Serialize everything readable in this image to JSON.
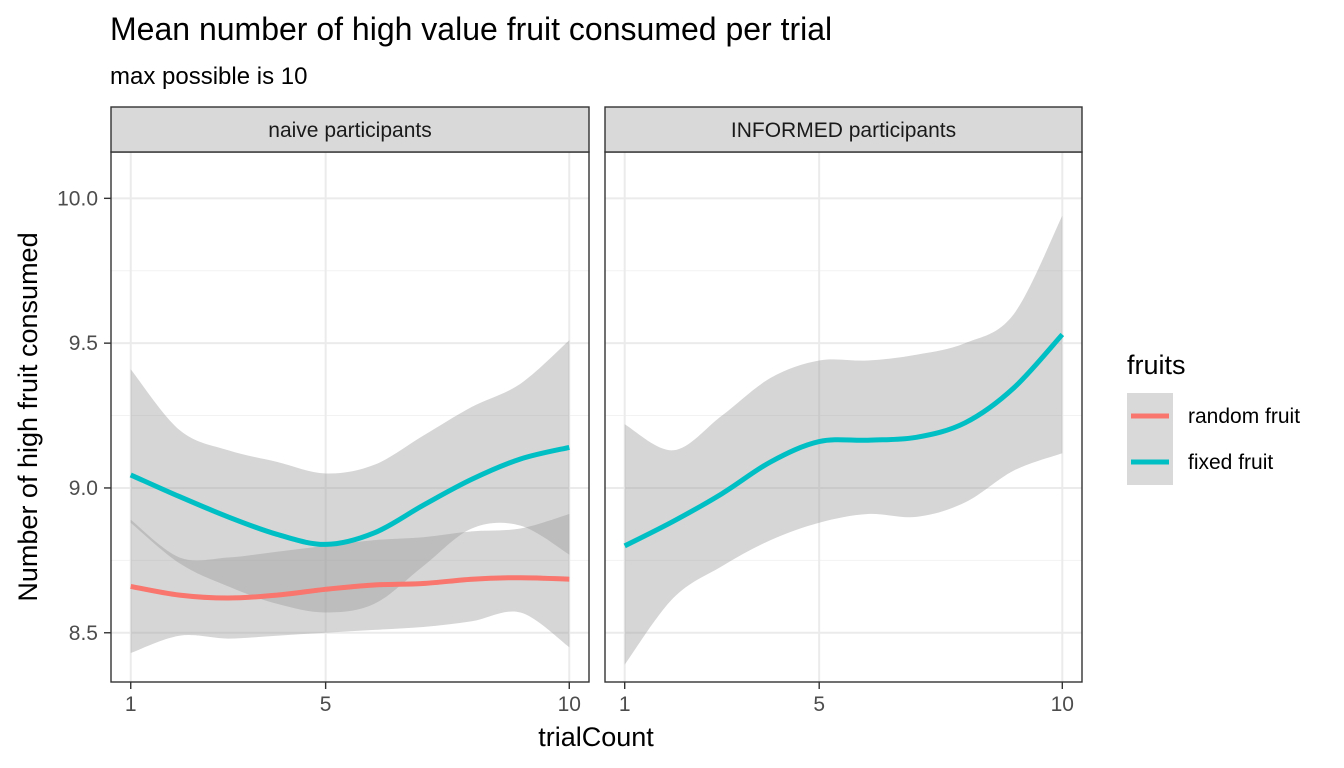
{
  "chart_data": {
    "type": "line",
    "title": "Mean number of high value fruit consumed per trial",
    "subtitle": "max possible is 10",
    "xlabel": "trialCount",
    "ylabel": "Number of high fruit consumed",
    "xlim": [
      1,
      10
    ],
    "ylim": [
      8.33,
      10.16
    ],
    "x_ticks": [
      1,
      5,
      10
    ],
    "x_tick_labels": [
      "1",
      "5",
      "10"
    ],
    "y_ticks": [
      8.5,
      9.0,
      9.5,
      10.0
    ],
    "y_tick_labels": [
      "8.5",
      "9.0",
      "9.5",
      "10.0"
    ],
    "grid": true,
    "legend": {
      "title": "fruits",
      "position": "right",
      "entries": [
        {
          "label": "random fruit",
          "color": "#F8766D"
        },
        {
          "label": "fixed fruit",
          "color": "#00BFC4"
        }
      ]
    },
    "x": [
      1,
      2,
      3,
      4,
      5,
      6,
      7,
      8,
      9,
      10
    ],
    "panels": [
      {
        "label": "naive participants",
        "series": [
          {
            "name": "random fruit",
            "color": "#F8766D",
            "values": [
              8.66,
              8.63,
              8.62,
              8.63,
              8.65,
              8.665,
              8.67,
              8.685,
              8.69,
              8.685
            ],
            "ci_low": [
              8.43,
              8.49,
              8.48,
              8.49,
              8.5,
              8.51,
              8.52,
              8.54,
              8.57,
              8.45
            ],
            "ci_high": [
              8.89,
              8.76,
              8.76,
              8.78,
              8.8,
              8.82,
              8.83,
              8.85,
              8.86,
              8.91
            ]
          },
          {
            "name": "fixed fruit",
            "color": "#00BFC4",
            "values": [
              9.045,
              8.97,
              8.9,
              8.84,
              8.805,
              8.845,
              8.94,
              9.03,
              9.1,
              9.14
            ],
            "ci_low": [
              8.88,
              8.74,
              8.66,
              8.6,
              8.57,
              8.6,
              8.73,
              8.86,
              8.87,
              8.77
            ],
            "ci_high": [
              9.41,
              9.2,
              9.13,
              9.09,
              9.05,
              9.08,
              9.18,
              9.28,
              9.36,
              9.51
            ]
          }
        ]
      },
      {
        "label": "INFORMED participants",
        "series": [
          {
            "name": "fixed fruit",
            "color": "#00BFC4",
            "values": [
              8.8,
              8.885,
              8.98,
              9.09,
              9.16,
              9.165,
              9.175,
              9.225,
              9.345,
              9.53
            ],
            "ci_low": [
              8.39,
              8.62,
              8.73,
              8.82,
              8.88,
              8.91,
              8.9,
              8.95,
              9.06,
              9.12
            ],
            "ci_high": [
              9.22,
              9.13,
              9.25,
              9.38,
              9.44,
              9.44,
              9.46,
              9.5,
              9.6,
              9.94
            ]
          }
        ]
      }
    ]
  }
}
